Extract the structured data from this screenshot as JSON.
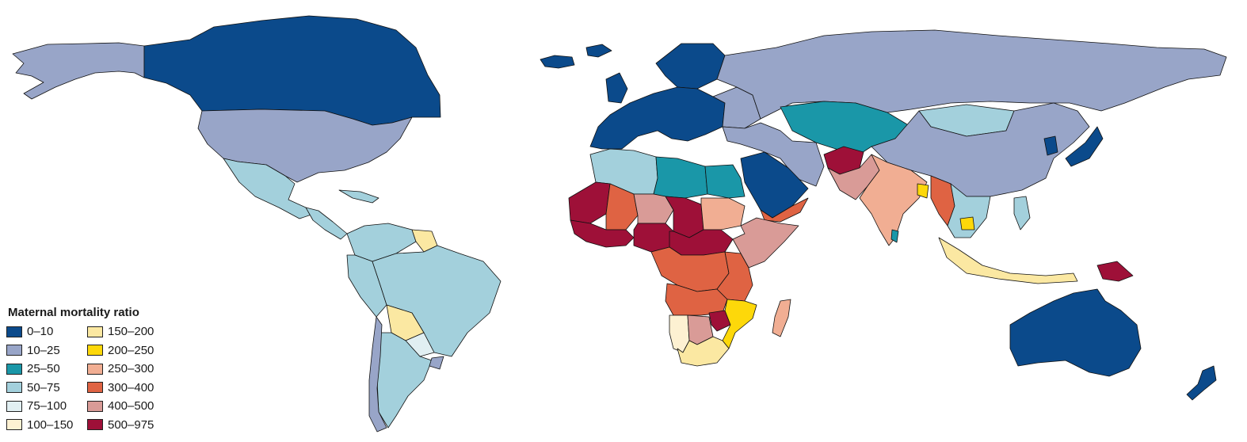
{
  "legend": {
    "title": "Maternal mortality ratio",
    "items": [
      {
        "label": "0–10",
        "color": "#0b4a8b"
      },
      {
        "label": "10–25",
        "color": "#98a5c8"
      },
      {
        "label": "25–50",
        "color": "#1a97a8"
      },
      {
        "label": "50–75",
        "color": "#a3d0dc"
      },
      {
        "label": "75–100",
        "color": "#e1eff2"
      },
      {
        "label": "100–150",
        "color": "#fdf1d2"
      },
      {
        "label": "150–200",
        "color": "#fbe8a2"
      },
      {
        "label": "200–250",
        "color": "#fdd80a"
      },
      {
        "label": "250–300",
        "color": "#f1ae93"
      },
      {
        "label": "300–400",
        "color": "#df6343"
      },
      {
        "label": "400–500",
        "color": "#d99b97"
      },
      {
        "label": "500–975",
        "color": "#9e1038"
      }
    ]
  },
  "regions": [
    {
      "name": "canada",
      "bin": 0
    },
    {
      "name": "alaska",
      "bin": 1
    },
    {
      "name": "usa",
      "bin": 1
    },
    {
      "name": "mexico",
      "bin": 3
    },
    {
      "name": "central-america",
      "bin": 3
    },
    {
      "name": "caribbean",
      "bin": 3
    },
    {
      "name": "greenland",
      "bin": 0
    },
    {
      "name": "colombia-venezuela",
      "bin": 3
    },
    {
      "name": "guyana",
      "bin": 6
    },
    {
      "name": "peru-ecuador",
      "bin": 3
    },
    {
      "name": "brazil",
      "bin": 3
    },
    {
      "name": "bolivia",
      "bin": 6
    },
    {
      "name": "paraguay",
      "bin": 4
    },
    {
      "name": "argentina",
      "bin": 3
    },
    {
      "name": "chile",
      "bin": 1
    },
    {
      "name": "uruguay",
      "bin": 1
    },
    {
      "name": "iceland",
      "bin": 0
    },
    {
      "name": "europe",
      "bin": 0
    },
    {
      "name": "scandinavia",
      "bin": 0
    },
    {
      "name": "uk",
      "bin": 0
    },
    {
      "name": "russia",
      "bin": 1
    },
    {
      "name": "eastern-europe",
      "bin": 1
    },
    {
      "name": "kazakhstan-central-asia",
      "bin": 2
    },
    {
      "name": "turkey-iran",
      "bin": 1
    },
    {
      "name": "mongolia",
      "bin": 3
    },
    {
      "name": "china",
      "bin": 1
    },
    {
      "name": "japan",
      "bin": 0
    },
    {
      "name": "korea",
      "bin": 0
    },
    {
      "name": "arabia",
      "bin": 0
    },
    {
      "name": "yemen-oman",
      "bin": 9
    },
    {
      "name": "afghanistan",
      "bin": 11
    },
    {
      "name": "pakistan",
      "bin": 10
    },
    {
      "name": "india",
      "bin": 8
    },
    {
      "name": "sri-lanka",
      "bin": 2
    },
    {
      "name": "bangladesh",
      "bin": 7
    },
    {
      "name": "myanmar",
      "bin": 9
    },
    {
      "name": "indochina",
      "bin": 3
    },
    {
      "name": "cambodia",
      "bin": 7
    },
    {
      "name": "indonesia",
      "bin": 6
    },
    {
      "name": "philippines",
      "bin": 3
    },
    {
      "name": "png",
      "bin": 11
    },
    {
      "name": "australia",
      "bin": 0
    },
    {
      "name": "new-zealand",
      "bin": 0
    },
    {
      "name": "maghreb",
      "bin": 3
    },
    {
      "name": "libya",
      "bin": 2
    },
    {
      "name": "egypt",
      "bin": 2
    },
    {
      "name": "mauritania",
      "bin": 11
    },
    {
      "name": "mali",
      "bin": 9
    },
    {
      "name": "niger",
      "bin": 10
    },
    {
      "name": "chad",
      "bin": 11
    },
    {
      "name": "sudan",
      "bin": 8
    },
    {
      "name": "west-africa",
      "bin": 11
    },
    {
      "name": "nigeria",
      "bin": 11
    },
    {
      "name": "central-africa",
      "bin": 11
    },
    {
      "name": "ethiopia-horn",
      "bin": 10
    },
    {
      "name": "congo-basin",
      "bin": 9
    },
    {
      "name": "east-africa",
      "bin": 9
    },
    {
      "name": "angola-zambia",
      "bin": 9
    },
    {
      "name": "namibia",
      "bin": 5
    },
    {
      "name": "zimbabwe",
      "bin": 11
    },
    {
      "name": "mozambique",
      "bin": 7
    },
    {
      "name": "botswana",
      "bin": 10
    },
    {
      "name": "south-africa",
      "bin": 6
    },
    {
      "name": "madagascar",
      "bin": 8
    }
  ]
}
